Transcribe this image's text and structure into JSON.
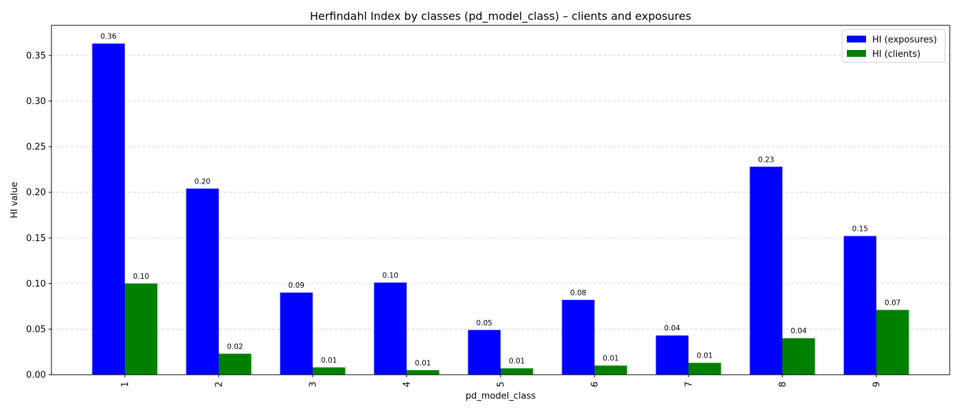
{
  "chart_data": {
    "type": "bar",
    "title": "Herfindahl Index by classes (pd_model_class) – clients and exposures",
    "xlabel": "pd_model_class",
    "ylabel": "HI value",
    "categories": [
      "1",
      "2",
      "3",
      "4",
      "5",
      "6",
      "7",
      "8",
      "9"
    ],
    "series": [
      {
        "name": "HI (exposures)",
        "color": "#0000ff",
        "values": [
          0.363,
          0.204,
          0.09,
          0.101,
          0.049,
          0.082,
          0.043,
          0.228,
          0.152
        ],
        "labels": [
          "0.36",
          "0.20",
          "0.09",
          "0.10",
          "0.05",
          "0.08",
          "0.04",
          "0.23",
          "0.15"
        ]
      },
      {
        "name": "HI (clients)",
        "color": "#008000",
        "values": [
          0.1,
          0.023,
          0.008,
          0.005,
          0.007,
          0.01,
          0.013,
          0.04,
          0.071
        ],
        "labels": [
          "0.10",
          "0.02",
          "0.01",
          "0.01",
          "0.01",
          "0.01",
          "0.01",
          "0.04",
          "0.07"
        ]
      }
    ],
    "ylim": [
      0,
      0.383
    ],
    "yticks": [
      0.0,
      0.05,
      0.1,
      0.15,
      0.2,
      0.25,
      0.3,
      0.35
    ],
    "ytick_labels": [
      "0.00",
      "0.05",
      "0.10",
      "0.15",
      "0.20",
      "0.25",
      "0.30",
      "0.35"
    ],
    "grid": "y-dashed",
    "legend_position": "top-right",
    "xtick_rotation": "vertical"
  }
}
